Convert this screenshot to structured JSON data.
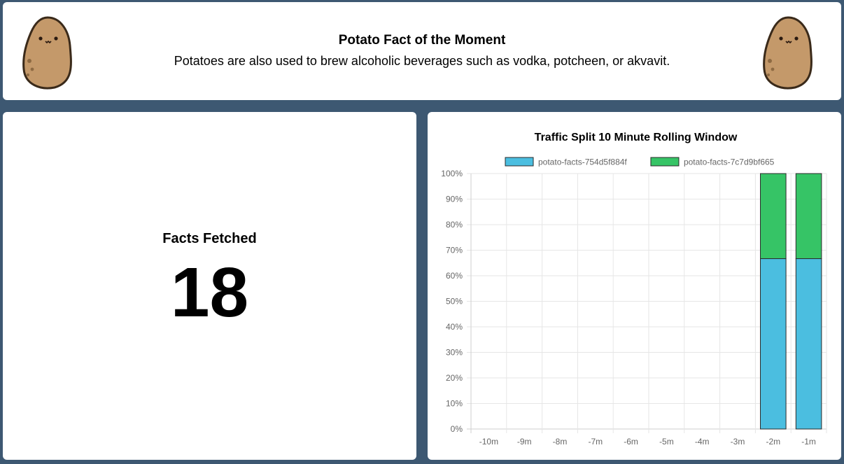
{
  "header": {
    "title": "Potato Fact of the Moment",
    "fact": "Potatoes are also used to brew alcoholic beverages such as vodka, potcheen, or akvavit."
  },
  "facts_panel": {
    "label": "Facts Fetched",
    "count": "18"
  },
  "colors": {
    "background": "#3d5872",
    "series_1": "#4bbee0",
    "series_2": "#36c466",
    "potato_skin": "#c4996a"
  },
  "icons": {
    "left": "potato-mascot-icon",
    "right": "potato-mascot-icon"
  },
  "chart_data": {
    "type": "bar",
    "stacked": true,
    "title": "Traffic Split 10 Minute Rolling Window",
    "categories": [
      "-10m",
      "-9m",
      "-8m",
      "-7m",
      "-6m",
      "-5m",
      "-4m",
      "-3m",
      "-2m",
      "-1m"
    ],
    "series": [
      {
        "name": "potato-facts-754d5f884f",
        "color": "#4bbee0",
        "values": [
          0,
          0,
          0,
          0,
          0,
          0,
          0,
          0,
          66.7,
          66.7
        ]
      },
      {
        "name": "potato-facts-7c7d9bf665",
        "color": "#36c466",
        "values": [
          0,
          0,
          0,
          0,
          0,
          0,
          0,
          0,
          33.3,
          33.3
        ]
      }
    ],
    "ylim": [
      0,
      100
    ],
    "yticks": [
      "0%",
      "10%",
      "20%",
      "30%",
      "40%",
      "50%",
      "60%",
      "70%",
      "80%",
      "90%",
      "100%"
    ],
    "grid": true,
    "legend_position": "top"
  }
}
